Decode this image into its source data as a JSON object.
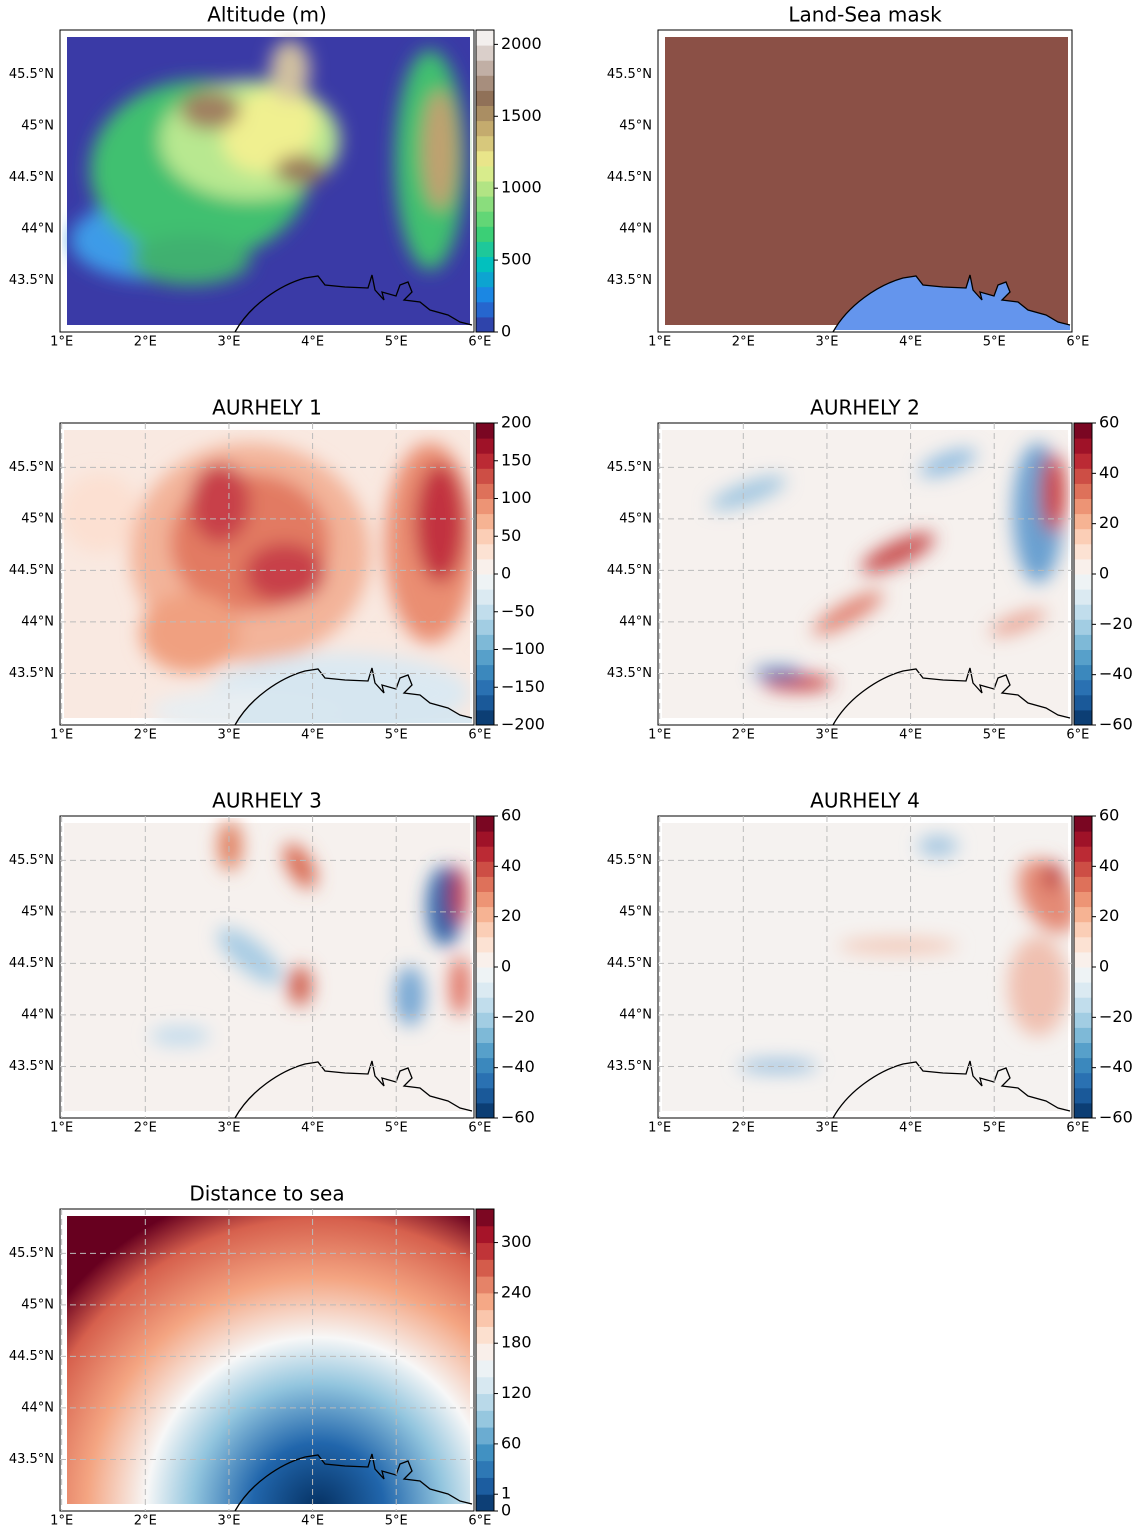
{
  "chart_data": [
    {
      "type": "map",
      "title": "Altitude (m)",
      "xlim": [
        0.98,
        5.93
      ],
      "xticks": [
        {
          "value": 1,
          "label": "1°E"
        },
        {
          "value": 2,
          "label": "2°E"
        },
        {
          "value": 3,
          "label": "3°E"
        },
        {
          "value": 4,
          "label": "4°E"
        },
        {
          "value": 5,
          "label": "5°E"
        },
        {
          "value": 6,
          "label": "6°E"
        }
      ],
      "ylim": [
        43.0,
        45.93
      ],
      "yticks": [
        {
          "value": 43.5,
          "label": "43.5°N"
        },
        {
          "value": 44,
          "label": "44°N"
        },
        {
          "value": 44.5,
          "label": "44.5°N"
        },
        {
          "value": 45,
          "label": "45°N"
        },
        {
          "value": 45.5,
          "label": "45.5°N"
        }
      ],
      "grid": false,
      "clim": [
        0,
        2100
      ],
      "cticks": [
        0,
        500,
        1000,
        1500,
        2000
      ],
      "colors": [
        "#333399",
        "#1f7fe8",
        "#00c0c0",
        "#40d070",
        "#9ae080",
        "#f0f090",
        "#c8b070",
        "#8f6f57",
        "#c8b8b0",
        "#ffffff"
      ]
    },
    {
      "type": "map",
      "title": "Land-Sea mask",
      "xlim": [
        0.98,
        5.93
      ],
      "xticks": [
        {
          "value": 1,
          "label": "1°E"
        },
        {
          "value": 2,
          "label": "2°E"
        },
        {
          "value": 3,
          "label": "3°E"
        },
        {
          "value": 4,
          "label": "4°E"
        },
        {
          "value": 5,
          "label": "5°E"
        },
        {
          "value": 6,
          "label": "6°E"
        }
      ],
      "ylim": [
        43.0,
        45.93
      ],
      "yticks": [
        {
          "value": 43.5,
          "label": "43.5°N"
        },
        {
          "value": 44,
          "label": "44°N"
        },
        {
          "value": 44.5,
          "label": "44.5°N"
        },
        {
          "value": 45,
          "label": "45°N"
        },
        {
          "value": 45.5,
          "label": "45.5°N"
        }
      ],
      "grid": false,
      "colors": [
        "#8b5046",
        "#6495ed"
      ]
    },
    {
      "type": "map",
      "title": "AURHELY 1",
      "xlim": [
        0.98,
        5.93
      ],
      "xticks": [
        {
          "value": 1,
          "label": "1°E"
        },
        {
          "value": 2,
          "label": "2°E"
        },
        {
          "value": 3,
          "label": "3°E"
        },
        {
          "value": 4,
          "label": "4°E"
        },
        {
          "value": 5,
          "label": "5°E"
        },
        {
          "value": 6,
          "label": "6°E"
        }
      ],
      "ylim": [
        43.0,
        45.93
      ],
      "yticks": [
        {
          "value": 43.5,
          "label": "43.5°N"
        },
        {
          "value": 44,
          "label": "44°N"
        },
        {
          "value": 44.5,
          "label": "44.5°N"
        },
        {
          "value": 45,
          "label": "45°N"
        },
        {
          "value": 45.5,
          "label": "45.5°N"
        }
      ],
      "grid": true,
      "clim": [
        -200,
        200
      ],
      "cticks": [
        {
          "value": -200,
          "label": "−200"
        },
        {
          "value": -150,
          "label": "−150"
        },
        {
          "value": -100,
          "label": "−100"
        },
        {
          "value": -50,
          "label": "−50"
        },
        0,
        50,
        100,
        150,
        200
      ],
      "colors": [
        "#053061",
        "#2166ac",
        "#4393c3",
        "#92c5de",
        "#d1e5f0",
        "#f7f7f7",
        "#fddbc7",
        "#f4a582",
        "#d6604d",
        "#b2182b",
        "#67001f"
      ]
    },
    {
      "type": "map",
      "title": "AURHELY 2",
      "xlim": [
        0.98,
        5.93
      ],
      "xticks": [
        {
          "value": 1,
          "label": "1°E"
        },
        {
          "value": 2,
          "label": "2°E"
        },
        {
          "value": 3,
          "label": "3°E"
        },
        {
          "value": 4,
          "label": "4°E"
        },
        {
          "value": 5,
          "label": "5°E"
        },
        {
          "value": 6,
          "label": "6°E"
        }
      ],
      "ylim": [
        43.0,
        45.93
      ],
      "yticks": [
        {
          "value": 43.5,
          "label": "43.5°N"
        },
        {
          "value": 44,
          "label": "44°N"
        },
        {
          "value": 44.5,
          "label": "44.5°N"
        },
        {
          "value": 45,
          "label": "45°N"
        },
        {
          "value": 45.5,
          "label": "45.5°N"
        }
      ],
      "grid": true,
      "clim": [
        -60,
        60
      ],
      "cticks": [
        {
          "value": -60,
          "label": "−60"
        },
        {
          "value": -40,
          "label": "−40"
        },
        {
          "value": -20,
          "label": "−20"
        },
        0,
        20,
        40,
        60
      ],
      "colors": [
        "#053061",
        "#2166ac",
        "#4393c3",
        "#92c5de",
        "#d1e5f0",
        "#f7f7f7",
        "#fddbc7",
        "#f4a582",
        "#d6604d",
        "#b2182b",
        "#67001f"
      ]
    },
    {
      "type": "map",
      "title": "AURHELY 3",
      "xlim": [
        0.98,
        5.93
      ],
      "xticks": [
        {
          "value": 1,
          "label": "1°E"
        },
        {
          "value": 2,
          "label": "2°E"
        },
        {
          "value": 3,
          "label": "3°E"
        },
        {
          "value": 4,
          "label": "4°E"
        },
        {
          "value": 5,
          "label": "5°E"
        },
        {
          "value": 6,
          "label": "6°E"
        }
      ],
      "ylim": [
        43.0,
        45.93
      ],
      "yticks": [
        {
          "value": 43.5,
          "label": "43.5°N"
        },
        {
          "value": 44,
          "label": "44°N"
        },
        {
          "value": 44.5,
          "label": "44.5°N"
        },
        {
          "value": 45,
          "label": "45°N"
        },
        {
          "value": 45.5,
          "label": "45.5°N"
        }
      ],
      "grid": true,
      "clim": [
        -60,
        60
      ],
      "cticks": [
        {
          "value": -60,
          "label": "−60"
        },
        {
          "value": -40,
          "label": "−40"
        },
        {
          "value": -20,
          "label": "−20"
        },
        0,
        20,
        40,
        60
      ],
      "colors": [
        "#053061",
        "#2166ac",
        "#4393c3",
        "#92c5de",
        "#d1e5f0",
        "#f7f7f7",
        "#fddbc7",
        "#f4a582",
        "#d6604d",
        "#b2182b",
        "#67001f"
      ]
    },
    {
      "type": "map",
      "title": "AURHELY 4",
      "xlim": [
        0.98,
        5.93
      ],
      "xticks": [
        {
          "value": 1,
          "label": "1°E"
        },
        {
          "value": 2,
          "label": "2°E"
        },
        {
          "value": 3,
          "label": "3°E"
        },
        {
          "value": 4,
          "label": "4°E"
        },
        {
          "value": 5,
          "label": "5°E"
        },
        {
          "value": 6,
          "label": "6°E"
        }
      ],
      "ylim": [
        43.0,
        45.93
      ],
      "yticks": [
        {
          "value": 43.5,
          "label": "43.5°N"
        },
        {
          "value": 44,
          "label": "44°N"
        },
        {
          "value": 44.5,
          "label": "44.5°N"
        },
        {
          "value": 45,
          "label": "45°N"
        },
        {
          "value": 45.5,
          "label": "45.5°N"
        }
      ],
      "grid": true,
      "clim": [
        -60,
        60
      ],
      "cticks": [
        {
          "value": -60,
          "label": "−60"
        },
        {
          "value": -40,
          "label": "−40"
        },
        {
          "value": -20,
          "label": "−20"
        },
        0,
        20,
        40,
        60
      ],
      "colors": [
        "#053061",
        "#2166ac",
        "#4393c3",
        "#92c5de",
        "#d1e5f0",
        "#f7f7f7",
        "#fddbc7",
        "#f4a582",
        "#d6604d",
        "#b2182b",
        "#67001f"
      ]
    },
    {
      "type": "map",
      "title": "Distance to sea",
      "xlim": [
        0.98,
        5.93
      ],
      "xticks": [
        {
          "value": 1,
          "label": "1°E"
        },
        {
          "value": 2,
          "label": "2°E"
        },
        {
          "value": 3,
          "label": "3°E"
        },
        {
          "value": 4,
          "label": "4°E"
        },
        {
          "value": 5,
          "label": "5°E"
        },
        {
          "value": 6,
          "label": "6°E"
        }
      ],
      "ylim": [
        43.0,
        45.93
      ],
      "yticks": [
        {
          "value": 43.5,
          "label": "43.5°N"
        },
        {
          "value": 44,
          "label": "44°N"
        },
        {
          "value": 44.5,
          "label": "44.5°N"
        },
        {
          "value": 45,
          "label": "45°N"
        },
        {
          "value": 45.5,
          "label": "45.5°N"
        }
      ],
      "grid": true,
      "clim": [
        0,
        340
      ],
      "boundaries": [
        0,
        1,
        20,
        40,
        60,
        80,
        100,
        120,
        140,
        160,
        180,
        200,
        220,
        240,
        260,
        280,
        300,
        320,
        340
      ],
      "cticks": [
        0,
        1,
        60,
        120,
        180,
        240,
        300
      ],
      "colors": [
        "#053061",
        "#2166ac",
        "#4393c3",
        "#92c5de",
        "#d1e5f0",
        "#f7f7f7",
        "#fddbc7",
        "#f4a582",
        "#d6604d",
        "#b2182b",
        "#67001f"
      ]
    }
  ]
}
